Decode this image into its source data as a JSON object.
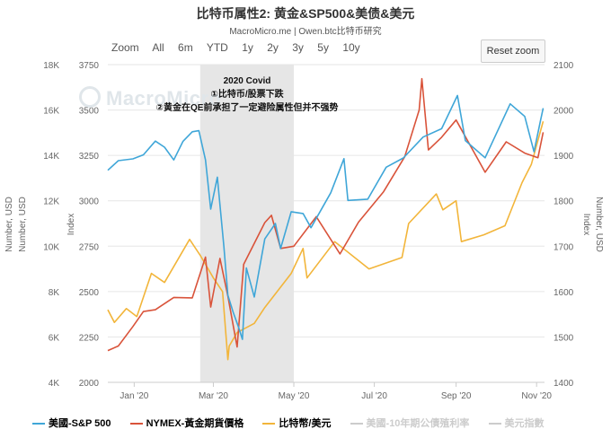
{
  "title": "比特币属性2: 黄金&SP500&美债&美元",
  "subtitle": "MacroMicro.me | Owen.btc比特币研究",
  "zoom": {
    "label": "Zoom",
    "options": [
      "All",
      "6m",
      "YTD",
      "1y",
      "2y",
      "3y",
      "5y",
      "10y"
    ],
    "reset": "Reset zoom"
  },
  "watermark": "MacroMicro",
  "annotations": {
    "heading": "2020 Covid",
    "line1": "①比特币/股票下跌",
    "line2": "②黄金在QE前承担了一定避险属性但并不强势"
  },
  "colors": {
    "sp500": "#3fa6d8",
    "gold": "#d9533a",
    "btc": "#f2b53a",
    "disabled": "#cccccc",
    "band": "#e6e6e6"
  },
  "chart_data": {
    "type": "line",
    "x_ticks": [
      "Jan '20",
      "Mar '20",
      "May '20",
      "Jul '20",
      "Sep '20",
      "Nov '20"
    ],
    "x_tick_dates": [
      "2020-01-01",
      "2020-03-01",
      "2020-05-01",
      "2020-07-01",
      "2020-09-01",
      "2020-11-01"
    ],
    "x_range": [
      "2019-12-12",
      "2020-11-07"
    ],
    "highlight_band": {
      "start": "2020-02-20",
      "end": "2020-05-01"
    },
    "axes": {
      "usd_number": {
        "title": "Number, USD",
        "ticks": [
          "4K",
          "6K",
          "8K",
          "10K",
          "12K",
          "14K",
          "16K",
          "18K"
        ],
        "range": [
          4000,
          18000
        ]
      },
      "index_left": {
        "title": "Index",
        "ticks": [
          "2000",
          "2250",
          "2500",
          "2750",
          "3000",
          "3250",
          "3500",
          "3750"
        ],
        "range": [
          2000,
          3750
        ]
      },
      "index_right": {
        "title": "Index",
        "ticks": [
          "1400",
          "1500",
          "1600",
          "1700",
          "1800",
          "1900",
          "2000",
          "2100"
        ],
        "range": [
          1400,
          2100
        ]
      },
      "usd_right": {
        "title": "Number, USD",
        "range": [
          4000,
          18000
        ]
      }
    },
    "series": [
      {
        "name": "美國-S&P 500",
        "axis": "index_left",
        "points": [
          [
            "2019-12-12",
            3168
          ],
          [
            "2019-12-20",
            3221
          ],
          [
            "2019-12-31",
            3231
          ],
          [
            "2020-01-08",
            3253
          ],
          [
            "2020-01-17",
            3329
          ],
          [
            "2020-01-24",
            3295
          ],
          [
            "2020-01-31",
            3225
          ],
          [
            "2020-02-07",
            3328
          ],
          [
            "2020-02-14",
            3380
          ],
          [
            "2020-02-19",
            3386
          ],
          [
            "2020-02-24",
            3225
          ],
          [
            "2020-02-28",
            2954
          ],
          [
            "2020-03-04",
            3130
          ],
          [
            "2020-03-09",
            2746
          ],
          [
            "2020-03-12",
            2480
          ],
          [
            "2020-03-16",
            2386
          ],
          [
            "2020-03-20",
            2305
          ],
          [
            "2020-03-23",
            2237
          ],
          [
            "2020-03-26",
            2630
          ],
          [
            "2020-04-01",
            2470
          ],
          [
            "2020-04-09",
            2790
          ],
          [
            "2020-04-17",
            2875
          ],
          [
            "2020-04-21",
            2737
          ],
          [
            "2020-04-29",
            2940
          ],
          [
            "2020-05-08",
            2930
          ],
          [
            "2020-05-14",
            2852
          ],
          [
            "2020-05-29",
            3044
          ],
          [
            "2020-06-08",
            3232
          ],
          [
            "2020-06-11",
            3002
          ],
          [
            "2020-06-26",
            3009
          ],
          [
            "2020-07-10",
            3185
          ],
          [
            "2020-07-23",
            3236
          ],
          [
            "2020-08-07",
            3351
          ],
          [
            "2020-08-21",
            3397
          ],
          [
            "2020-09-02",
            3580
          ],
          [
            "2020-09-08",
            3332
          ],
          [
            "2020-09-23",
            3237
          ],
          [
            "2020-10-12",
            3534
          ],
          [
            "2020-10-23",
            3465
          ],
          [
            "2020-10-30",
            3270
          ],
          [
            "2020-11-04",
            3443
          ],
          [
            "2020-11-06",
            3510
          ]
        ]
      },
      {
        "name": "NYMEX-黃金期貨價格",
        "axis": "index_right",
        "points": [
          [
            "2019-12-12",
            1470
          ],
          [
            "2019-12-20",
            1480
          ],
          [
            "2019-12-31",
            1523
          ],
          [
            "2020-01-08",
            1556
          ],
          [
            "2020-01-17",
            1560
          ],
          [
            "2020-01-31",
            1587
          ],
          [
            "2020-02-14",
            1586
          ],
          [
            "2020-02-24",
            1676
          ],
          [
            "2020-02-28",
            1566
          ],
          [
            "2020-03-06",
            1673
          ],
          [
            "2020-03-12",
            1590
          ],
          [
            "2020-03-19",
            1478
          ],
          [
            "2020-03-24",
            1660
          ],
          [
            "2020-04-09",
            1752
          ],
          [
            "2020-04-14",
            1768
          ],
          [
            "2020-04-21",
            1695
          ],
          [
            "2020-05-01",
            1700
          ],
          [
            "2020-05-18",
            1765
          ],
          [
            "2020-06-05",
            1683
          ],
          [
            "2020-06-19",
            1753
          ],
          [
            "2020-07-08",
            1820
          ],
          [
            "2020-07-24",
            1897
          ],
          [
            "2020-08-04",
            2000
          ],
          [
            "2020-08-06",
            2069
          ],
          [
            "2020-08-11",
            1912
          ],
          [
            "2020-08-21",
            1940
          ],
          [
            "2020-09-01",
            1978
          ],
          [
            "2020-09-23",
            1863
          ],
          [
            "2020-10-09",
            1930
          ],
          [
            "2020-10-23",
            1905
          ],
          [
            "2020-11-02",
            1895
          ],
          [
            "2020-11-06",
            1951
          ]
        ]
      },
      {
        "name": "比特幣/美元",
        "axis": "usd_number",
        "points": [
          [
            "2019-12-12",
            7200
          ],
          [
            "2019-12-17",
            6640
          ],
          [
            "2019-12-26",
            7250
          ],
          [
            "2020-01-03",
            6900
          ],
          [
            "2020-01-14",
            8800
          ],
          [
            "2020-01-24",
            8400
          ],
          [
            "2020-02-12",
            10300
          ],
          [
            "2020-02-20",
            9600
          ],
          [
            "2020-03-01",
            8600
          ],
          [
            "2020-03-08",
            8000
          ],
          [
            "2020-03-12",
            5000
          ],
          [
            "2020-03-13",
            5600
          ],
          [
            "2020-03-19",
            6200
          ],
          [
            "2020-04-01",
            6600
          ],
          [
            "2020-04-09",
            7300
          ],
          [
            "2020-04-29",
            8800
          ],
          [
            "2020-05-08",
            9900
          ],
          [
            "2020-05-11",
            8600
          ],
          [
            "2020-06-01",
            10200
          ],
          [
            "2020-06-27",
            9000
          ],
          [
            "2020-07-22",
            9500
          ],
          [
            "2020-07-27",
            11000
          ],
          [
            "2020-08-17",
            12300
          ],
          [
            "2020-08-22",
            11600
          ],
          [
            "2020-09-01",
            12000
          ],
          [
            "2020-09-05",
            10200
          ],
          [
            "2020-09-22",
            10500
          ],
          [
            "2020-10-08",
            10900
          ],
          [
            "2020-10-21",
            12800
          ],
          [
            "2020-10-28",
            13600
          ],
          [
            "2020-11-06",
            15500
          ]
        ]
      }
    ],
    "legend_disabled": [
      "美國-10年期公債殖利率",
      "美元指數"
    ],
    "legend_position": "bottom"
  }
}
